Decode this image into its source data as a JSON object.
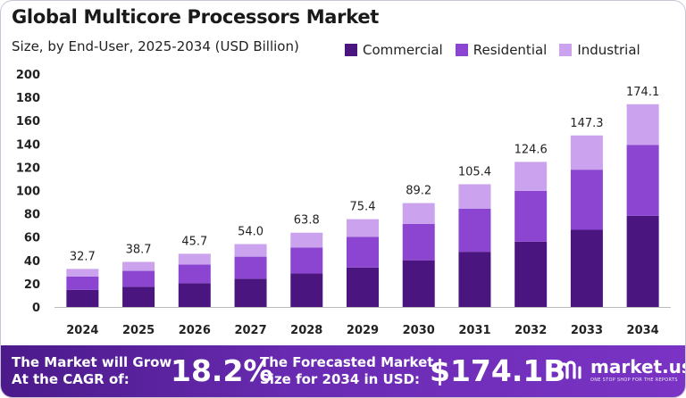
{
  "colors": {
    "commercial": "#4b1580",
    "residential": "#8b45d0",
    "industrial": "#caa2ee",
    "footer_start": "#4b1a8a",
    "footer_end": "#7a33c4"
  },
  "chart_data": {
    "type": "bar",
    "stacked": true,
    "title": "Global Multicore Processors Market",
    "subtitle": "Size, by End-User, 2025-2034 (USD Billion)",
    "categories": [
      "2024",
      "2025",
      "2026",
      "2027",
      "2028",
      "2029",
      "2030",
      "2031",
      "2032",
      "2033",
      "2034"
    ],
    "series": [
      {
        "name": "Commercial",
        "values": [
          14.7,
          17.4,
          20.5,
          24.3,
          28.7,
          33.9,
          40.1,
          47.4,
          56.1,
          66.3,
          78.3
        ]
      },
      {
        "name": "Residential",
        "values": [
          11.4,
          13.6,
          16.0,
          18.9,
          22.3,
          26.4,
          31.2,
          36.9,
          43.6,
          51.6,
          60.9
        ]
      },
      {
        "name": "Industrial",
        "values": [
          6.6,
          7.7,
          9.2,
          10.8,
          12.8,
          15.1,
          17.9,
          21.1,
          24.9,
          29.4,
          34.9
        ]
      }
    ],
    "totals": [
      "32.7",
      "38.7",
      "45.7",
      "54.0",
      "63.8",
      "75.4",
      "89.2",
      "105.4",
      "124.6",
      "147.3",
      "174.1"
    ],
    "yticks": [
      "0",
      "20",
      "40",
      "60",
      "80",
      "100",
      "120",
      "140",
      "160",
      "180",
      "200"
    ],
    "ylim": [
      0,
      200
    ],
    "grid": false,
    "legend_position": "top-right"
  },
  "footer": {
    "grow_line1": "The Market will Grow",
    "grow_line2": "At the CAGR of:",
    "cagr": "18.2%",
    "forecast_line1": "The Forecasted Market",
    "forecast_line2": "Size for 2034 in USD:",
    "forecast_value": "$174.1B",
    "logo_text": "market.us",
    "logo_tagline": "ONE STOP SHOP FOR THE REPORTS"
  }
}
